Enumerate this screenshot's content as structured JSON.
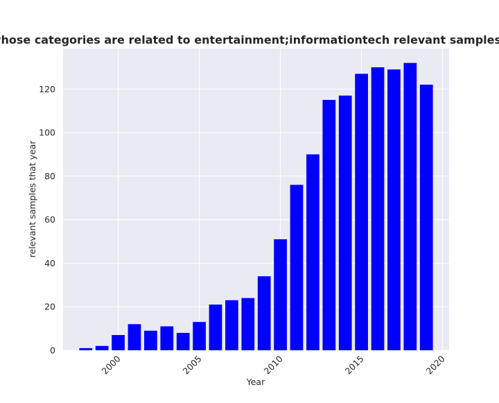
{
  "chart_data": {
    "type": "bar",
    "title": "Number of privacy policies whose categories are related to entertainment;informationtech relevant samples that year in privacy policies",
    "xlabel": "Year",
    "ylabel": "relevant samples that year",
    "x": [
      1998,
      1999,
      2000,
      2001,
      2002,
      2003,
      2004,
      2005,
      2006,
      2007,
      2008,
      2009,
      2010,
      2011,
      2012,
      2013,
      2014,
      2015,
      2016,
      2017,
      2018,
      2019
    ],
    "values": [
      1,
      2,
      7,
      12,
      9,
      11,
      8,
      13,
      21,
      23,
      24,
      34,
      51,
      76,
      90,
      115,
      117,
      127,
      130,
      129,
      132,
      122
    ],
    "xlim": [
      1996.6,
      2020.4
    ],
    "ylim": [
      0,
      138.6
    ],
    "xticks": [
      2000,
      2005,
      2010,
      2015,
      2020
    ],
    "yticks": [
      0,
      20,
      40,
      60,
      80,
      100,
      120
    ],
    "bar_color": "#0000ff",
    "plot_background": "#eaeaf2",
    "grid": true,
    "legend": "none"
  }
}
